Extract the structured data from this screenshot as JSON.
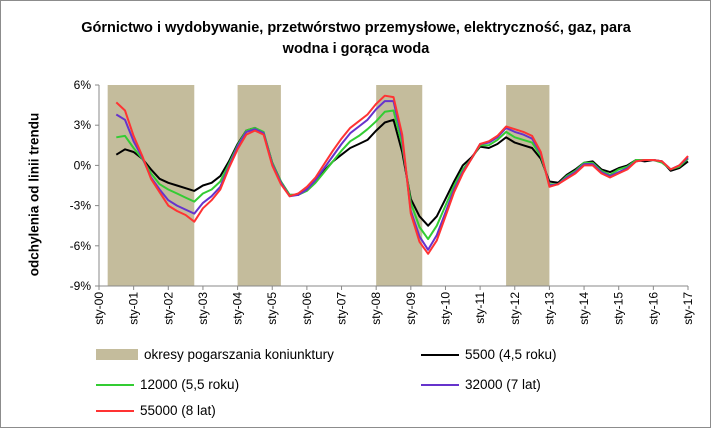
{
  "chart_data": {
    "type": "line",
    "title": "Górnictwo i wydobywanie, przetwórstwo przemysłowe, elektryczność, gaz, para wodna i gorąca woda",
    "ylabel": "odchylenia od linii trendu",
    "xlabel": "",
    "ylim": [
      -9,
      6
    ],
    "yticks": [
      6,
      3,
      0,
      -3,
      -6,
      -9
    ],
    "ytick_labels": [
      "6%",
      "3%",
      "0%",
      "-3%",
      "-6%",
      "-9%"
    ],
    "xticks": [
      2000,
      2001,
      2002,
      2003,
      2004,
      2005,
      2006,
      2007,
      2008,
      2009,
      2010,
      2011,
      2012,
      2013,
      2014,
      2015,
      2016,
      2017
    ],
    "xtick_labels": [
      "sty-00",
      "sty-01",
      "sty-02",
      "sty-03",
      "sty-04",
      "sty-05",
      "sty-06",
      "sty-07",
      "sty-08",
      "sty-09",
      "sty-10",
      "sty-11",
      "sty-12",
      "sty-13",
      "sty-14",
      "sty-15",
      "sty-16",
      "sty-17"
    ],
    "xlim": [
      2000,
      2017
    ],
    "grid": "none",
    "legend": "bottom",
    "shaded_periods": {
      "name": "okresy pogarszania koniunktury",
      "color": "#c4bc9c",
      "ranges": [
        [
          2000.25,
          2002.75
        ],
        [
          2004.0,
          2005.25
        ],
        [
          2008.0,
          2009.33
        ],
        [
          2011.75,
          2013.0
        ]
      ]
    },
    "series": [
      {
        "name": "5500 (4,5 roku)",
        "color": "#000000",
        "x": [
          2000.5,
          2000.75,
          2001.0,
          2001.25,
          2001.5,
          2001.75,
          2002.0,
          2002.25,
          2002.5,
          2002.75,
          2003.0,
          2003.25,
          2003.5,
          2003.75,
          2004.0,
          2004.25,
          2004.5,
          2004.75,
          2005.0,
          2005.25,
          2005.5,
          2005.75,
          2006.0,
          2006.25,
          2006.5,
          2006.75,
          2007.0,
          2007.25,
          2007.5,
          2007.75,
          2008.0,
          2008.25,
          2008.5,
          2008.75,
          2009.0,
          2009.25,
          2009.5,
          2009.75,
          2010.0,
          2010.25,
          2010.5,
          2010.75,
          2011.0,
          2011.25,
          2011.5,
          2011.75,
          2012.0,
          2012.25,
          2012.5,
          2012.75,
          2013.0,
          2013.25,
          2013.5,
          2013.75,
          2014.0,
          2014.25,
          2014.5,
          2014.75,
          2015.0,
          2015.25,
          2015.5,
          2015.75,
          2016.0,
          2016.25,
          2016.5,
          2016.75,
          2017.0
        ],
        "values": [
          0.8,
          1.2,
          1.0,
          0.5,
          -0.3,
          -1.0,
          -1.3,
          -1.5,
          -1.7,
          -1.9,
          -1.5,
          -1.3,
          -0.8,
          0.3,
          1.6,
          2.6,
          2.8,
          2.4,
          0.2,
          -1.2,
          -2.2,
          -2.2,
          -1.8,
          -1.2,
          -0.4,
          0.3,
          0.8,
          1.3,
          1.6,
          1.9,
          2.6,
          3.2,
          3.4,
          1.0,
          -2.5,
          -3.8,
          -4.5,
          -3.8,
          -2.5,
          -1.2,
          0.0,
          0.6,
          1.4,
          1.3,
          1.6,
          2.1,
          1.7,
          1.5,
          1.3,
          0.5,
          -1.2,
          -1.3,
          -0.7,
          -0.3,
          0.2,
          0.3,
          -0.3,
          -0.5,
          -0.2,
          0.0,
          0.4,
          0.3,
          0.4,
          0.3,
          -0.4,
          -0.2,
          0.3
        ]
      },
      {
        "name": "12000 (5,5 roku)",
        "color": "#33cc33",
        "x": [
          2000.5,
          2000.75,
          2001.0,
          2001.25,
          2001.5,
          2001.75,
          2002.0,
          2002.25,
          2002.5,
          2002.75,
          2003.0,
          2003.25,
          2003.5,
          2003.75,
          2004.0,
          2004.25,
          2004.5,
          2004.75,
          2005.0,
          2005.25,
          2005.5,
          2005.75,
          2006.0,
          2006.25,
          2006.5,
          2006.75,
          2007.0,
          2007.25,
          2007.5,
          2007.75,
          2008.0,
          2008.25,
          2008.5,
          2008.75,
          2009.0,
          2009.25,
          2009.5,
          2009.75,
          2010.0,
          2010.25,
          2010.5,
          2010.75,
          2011.0,
          2011.25,
          2011.5,
          2011.75,
          2012.0,
          2012.25,
          2012.5,
          2012.75,
          2013.0,
          2013.25,
          2013.5,
          2013.75,
          2014.0,
          2014.25,
          2014.5,
          2014.75,
          2015.0,
          2015.25,
          2015.5,
          2015.75,
          2016.0,
          2016.25,
          2016.5,
          2016.75,
          2017.0
        ],
        "values": [
          2.1,
          2.2,
          1.3,
          0.5,
          -0.6,
          -1.4,
          -1.8,
          -2.1,
          -2.4,
          -2.7,
          -2.1,
          -1.8,
          -1.2,
          0.1,
          1.5,
          2.6,
          2.8,
          2.5,
          0.2,
          -1.2,
          -2.2,
          -2.2,
          -1.9,
          -1.3,
          -0.5,
          0.3,
          1.1,
          1.8,
          2.2,
          2.7,
          3.3,
          4.0,
          4.1,
          1.5,
          -2.8,
          -4.6,
          -5.5,
          -4.5,
          -3.0,
          -1.5,
          -0.3,
          0.5,
          1.5,
          1.5,
          1.9,
          2.5,
          2.1,
          1.9,
          1.7,
          0.7,
          -1.4,
          -1.4,
          -0.8,
          -0.4,
          0.2,
          0.2,
          -0.4,
          -0.7,
          -0.3,
          -0.1,
          0.4,
          0.4,
          0.4,
          0.2,
          -0.3,
          -0.1,
          0.5
        ]
      },
      {
        "name": "32000 (7 lat)",
        "color": "#6633cc",
        "x": [
          2000.5,
          2000.75,
          2001.0,
          2001.25,
          2001.5,
          2001.75,
          2002.0,
          2002.25,
          2002.5,
          2002.75,
          2003.0,
          2003.25,
          2003.5,
          2003.75,
          2004.0,
          2004.25,
          2004.5,
          2004.75,
          2005.0,
          2005.25,
          2005.5,
          2005.75,
          2006.0,
          2006.25,
          2006.5,
          2006.75,
          2007.0,
          2007.25,
          2007.5,
          2007.75,
          2008.0,
          2008.25,
          2008.5,
          2008.75,
          2009.0,
          2009.25,
          2009.5,
          2009.75,
          2010.0,
          2010.25,
          2010.5,
          2010.75,
          2011.0,
          2011.25,
          2011.5,
          2011.75,
          2012.0,
          2012.25,
          2012.5,
          2012.75,
          2013.0,
          2013.25,
          2013.5,
          2013.75,
          2014.0,
          2014.25,
          2014.5,
          2014.75,
          2015.0,
          2015.25,
          2015.5,
          2015.75,
          2016.0,
          2016.25,
          2016.5,
          2016.75,
          2017.0
        ],
        "values": [
          3.8,
          3.4,
          1.8,
          0.6,
          -0.9,
          -1.8,
          -2.6,
          -3.0,
          -3.3,
          -3.6,
          -2.8,
          -2.3,
          -1.6,
          -0.1,
          1.4,
          2.5,
          2.7,
          2.4,
          0.1,
          -1.3,
          -2.3,
          -2.2,
          -1.8,
          -1.1,
          -0.2,
          0.7,
          1.6,
          2.4,
          2.9,
          3.4,
          4.2,
          4.8,
          4.8,
          2.0,
          -3.4,
          -5.3,
          -6.3,
          -5.2,
          -3.5,
          -1.8,
          -0.5,
          0.5,
          1.6,
          1.7,
          2.1,
          2.8,
          2.5,
          2.3,
          2.0,
          0.9,
          -1.5,
          -1.4,
          -0.9,
          -0.5,
          0.1,
          0.1,
          -0.5,
          -0.8,
          -0.5,
          -0.2,
          0.3,
          0.4,
          0.4,
          0.3,
          -0.3,
          0.0,
          0.6
        ]
      },
      {
        "name": "55000 (8 lat)",
        "color": "#ff3333",
        "x": [
          2000.5,
          2000.75,
          2001.0,
          2001.25,
          2001.5,
          2001.75,
          2002.0,
          2002.25,
          2002.5,
          2002.75,
          2003.0,
          2003.25,
          2003.5,
          2003.75,
          2004.0,
          2004.25,
          2004.5,
          2004.75,
          2005.0,
          2005.25,
          2005.5,
          2005.75,
          2006.0,
          2006.25,
          2006.5,
          2006.75,
          2007.0,
          2007.25,
          2007.5,
          2007.75,
          2008.0,
          2008.25,
          2008.5,
          2008.75,
          2009.0,
          2009.25,
          2009.5,
          2009.75,
          2010.0,
          2010.25,
          2010.5,
          2010.75,
          2011.0,
          2011.25,
          2011.5,
          2011.75,
          2012.0,
          2012.25,
          2012.5,
          2012.75,
          2013.0,
          2013.25,
          2013.5,
          2013.75,
          2014.0,
          2014.25,
          2014.5,
          2014.75,
          2015.0,
          2015.25,
          2015.5,
          2015.75,
          2016.0,
          2016.25,
          2016.5,
          2016.75,
          2017.0
        ],
        "values": [
          4.7,
          4.1,
          2.2,
          0.7,
          -1.0,
          -2.0,
          -3.0,
          -3.4,
          -3.7,
          -4.2,
          -3.2,
          -2.6,
          -1.8,
          -0.2,
          1.2,
          2.3,
          2.6,
          2.3,
          0.0,
          -1.4,
          -2.3,
          -2.1,
          -1.6,
          -0.9,
          0.1,
          1.1,
          2.0,
          2.8,
          3.3,
          3.8,
          4.6,
          5.2,
          5.1,
          2.3,
          -3.6,
          -5.7,
          -6.6,
          -5.6,
          -3.8,
          -2.0,
          -0.6,
          0.5,
          1.6,
          1.8,
          2.2,
          2.9,
          2.7,
          2.5,
          2.2,
          1.0,
          -1.6,
          -1.4,
          -1.0,
          -0.6,
          0.0,
          0.0,
          -0.6,
          -0.9,
          -0.6,
          -0.3,
          0.3,
          0.4,
          0.4,
          0.3,
          -0.3,
          0.0,
          0.7
        ]
      }
    ]
  }
}
